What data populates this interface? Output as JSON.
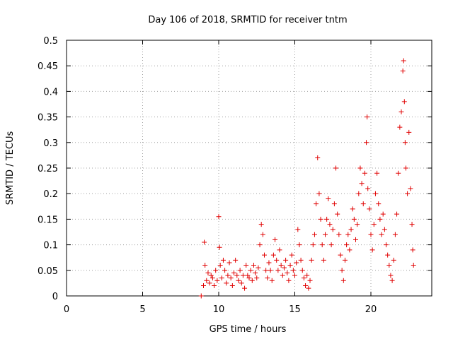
{
  "chart_data": {
    "type": "scatter",
    "title": "Day 106 of 2018, SRMTID for receiver tntm",
    "xlabel": "GPS time / hours",
    "ylabel": "SRMTID / TECUs",
    "xlim": [
      0,
      24
    ],
    "ylim": [
      0,
      0.5
    ],
    "xticks": [
      0,
      5,
      10,
      15,
      20
    ],
    "xtick_labels": [
      "0",
      "5",
      "10",
      "15",
      "20"
    ],
    "yticks": [
      0,
      0.05,
      0.1,
      0.15,
      0.2,
      0.25,
      0.3,
      0.35,
      0.4,
      0.45,
      0.5
    ],
    "ytick_labels": [
      "0",
      "0.05",
      "0.1",
      "0.15",
      "0.2",
      "0.25",
      "0.3",
      "0.35",
      "0.4",
      "0.45",
      "0.5"
    ],
    "grid": true,
    "marker": "+",
    "color": "#e00000",
    "series": [
      {
        "name": "SRMTID",
        "points": [
          [
            8.85,
            0.0
          ],
          [
            9.0,
            0.02
          ],
          [
            9.05,
            0.105
          ],
          [
            9.1,
            0.06
          ],
          [
            9.2,
            0.03
          ],
          [
            9.3,
            0.045
          ],
          [
            9.4,
            0.025
          ],
          [
            9.5,
            0.04
          ],
          [
            9.6,
            0.035
          ],
          [
            9.7,
            0.02
          ],
          [
            9.8,
            0.05
          ],
          [
            9.9,
            0.03
          ],
          [
            10.0,
            0.155
          ],
          [
            10.05,
            0.095
          ],
          [
            10.1,
            0.06
          ],
          [
            10.2,
            0.035
          ],
          [
            10.3,
            0.07
          ],
          [
            10.4,
            0.05
          ],
          [
            10.5,
            0.025
          ],
          [
            10.6,
            0.04
          ],
          [
            10.7,
            0.065
          ],
          [
            10.8,
            0.035
          ],
          [
            10.9,
            0.02
          ],
          [
            11.0,
            0.045
          ],
          [
            11.1,
            0.07
          ],
          [
            11.2,
            0.04
          ],
          [
            11.3,
            0.03
          ],
          [
            11.4,
            0.05
          ],
          [
            11.5,
            0.025
          ],
          [
            11.6,
            0.04
          ],
          [
            11.7,
            0.015
          ],
          [
            11.8,
            0.06
          ],
          [
            11.9,
            0.04
          ],
          [
            12.0,
            0.035
          ],
          [
            12.1,
            0.05
          ],
          [
            12.2,
            0.03
          ],
          [
            12.3,
            0.06
          ],
          [
            12.4,
            0.045
          ],
          [
            12.5,
            0.035
          ],
          [
            12.6,
            0.055
          ],
          [
            12.7,
            0.1
          ],
          [
            12.8,
            0.14
          ],
          [
            12.9,
            0.12
          ],
          [
            13.0,
            0.08
          ],
          [
            13.1,
            0.05
          ],
          [
            13.2,
            0.035
          ],
          [
            13.3,
            0.065
          ],
          [
            13.4,
            0.05
          ],
          [
            13.5,
            0.03
          ],
          [
            13.6,
            0.08
          ],
          [
            13.7,
            0.11
          ],
          [
            13.8,
            0.07
          ],
          [
            13.9,
            0.05
          ],
          [
            14.0,
            0.09
          ],
          [
            14.1,
            0.06
          ],
          [
            14.2,
            0.04
          ],
          [
            14.3,
            0.055
          ],
          [
            14.4,
            0.07
          ],
          [
            14.5,
            0.045
          ],
          [
            14.6,
            0.03
          ],
          [
            14.7,
            0.06
          ],
          [
            14.8,
            0.08
          ],
          [
            14.9,
            0.05
          ],
          [
            15.0,
            0.04
          ],
          [
            15.1,
            0.065
          ],
          [
            15.2,
            0.13
          ],
          [
            15.3,
            0.1
          ],
          [
            15.4,
            0.07
          ],
          [
            15.5,
            0.05
          ],
          [
            15.6,
            0.035
          ],
          [
            15.7,
            0.02
          ],
          [
            15.8,
            0.04
          ],
          [
            15.9,
            0.015
          ],
          [
            16.0,
            0.03
          ],
          [
            16.1,
            0.07
          ],
          [
            16.2,
            0.1
          ],
          [
            16.3,
            0.12
          ],
          [
            16.4,
            0.18
          ],
          [
            16.5,
            0.27
          ],
          [
            16.6,
            0.2
          ],
          [
            16.7,
            0.15
          ],
          [
            16.8,
            0.1
          ],
          [
            16.9,
            0.07
          ],
          [
            17.0,
            0.12
          ],
          [
            17.1,
            0.15
          ],
          [
            17.2,
            0.19
          ],
          [
            17.3,
            0.14
          ],
          [
            17.4,
            0.1
          ],
          [
            17.5,
            0.13
          ],
          [
            17.6,
            0.18
          ],
          [
            17.7,
            0.25
          ],
          [
            17.8,
            0.16
          ],
          [
            17.9,
            0.12
          ],
          [
            18.0,
            0.08
          ],
          [
            18.1,
            0.05
          ],
          [
            18.2,
            0.03
          ],
          [
            18.3,
            0.07
          ],
          [
            18.4,
            0.1
          ],
          [
            18.5,
            0.12
          ],
          [
            18.6,
            0.09
          ],
          [
            18.7,
            0.13
          ],
          [
            18.8,
            0.17
          ],
          [
            18.9,
            0.15
          ],
          [
            19.0,
            0.11
          ],
          [
            19.1,
            0.14
          ],
          [
            19.2,
            0.2
          ],
          [
            19.3,
            0.25
          ],
          [
            19.4,
            0.22
          ],
          [
            19.5,
            0.18
          ],
          [
            19.6,
            0.24
          ],
          [
            19.7,
            0.3
          ],
          [
            19.75,
            0.35
          ],
          [
            19.8,
            0.21
          ],
          [
            19.9,
            0.17
          ],
          [
            20.0,
            0.12
          ],
          [
            20.1,
            0.09
          ],
          [
            20.2,
            0.14
          ],
          [
            20.3,
            0.2
          ],
          [
            20.4,
            0.24
          ],
          [
            20.5,
            0.18
          ],
          [
            20.6,
            0.15
          ],
          [
            20.7,
            0.12
          ],
          [
            20.8,
            0.16
          ],
          [
            20.9,
            0.13
          ],
          [
            21.0,
            0.1
          ],
          [
            21.1,
            0.08
          ],
          [
            21.2,
            0.06
          ],
          [
            21.3,
            0.04
          ],
          [
            21.4,
            0.03
          ],
          [
            21.5,
            0.07
          ],
          [
            21.6,
            0.12
          ],
          [
            21.7,
            0.16
          ],
          [
            21.8,
            0.24
          ],
          [
            21.9,
            0.33
          ],
          [
            22.0,
            0.36
          ],
          [
            22.1,
            0.44
          ],
          [
            22.15,
            0.46
          ],
          [
            22.2,
            0.38
          ],
          [
            22.25,
            0.3
          ],
          [
            22.3,
            0.25
          ],
          [
            22.4,
            0.2
          ],
          [
            22.5,
            0.32
          ],
          [
            22.6,
            0.21
          ],
          [
            22.7,
            0.14
          ],
          [
            22.75,
            0.09
          ],
          [
            22.8,
            0.06
          ]
        ]
      }
    ]
  }
}
